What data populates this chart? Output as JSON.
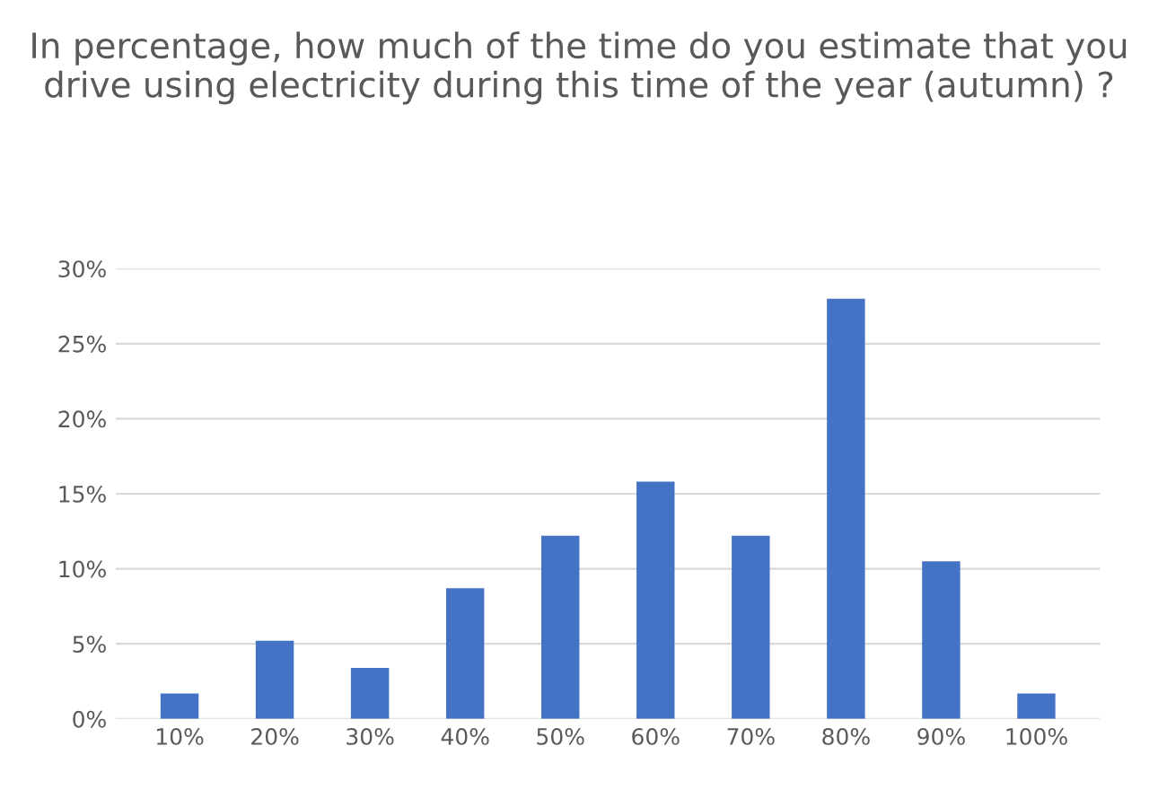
{
  "chart_data": {
    "type": "bar",
    "title": "In percentage, how much of the time do you estimate that you drive using electricity during this time of the year (autumn) ?",
    "categories": [
      "10%",
      "20%",
      "30%",
      "40%",
      "50%",
      "60%",
      "70%",
      "80%",
      "90%",
      "100%"
    ],
    "values": [
      1.7,
      5.2,
      3.4,
      8.7,
      12.2,
      15.8,
      12.2,
      28.0,
      10.5,
      1.7
    ],
    "color": "#4472c4",
    "ylim": [
      0,
      30
    ],
    "yticks": [
      {
        "value": 0,
        "label": "0%"
      },
      {
        "value": 5,
        "label": "5%"
      },
      {
        "value": 10,
        "label": "10%"
      },
      {
        "value": 15,
        "label": "15%"
      },
      {
        "value": 20,
        "label": "20%"
      },
      {
        "value": 25,
        "label": "25%"
      },
      {
        "value": 30,
        "label": "30%"
      }
    ],
    "grid": "y",
    "legend": false
  }
}
